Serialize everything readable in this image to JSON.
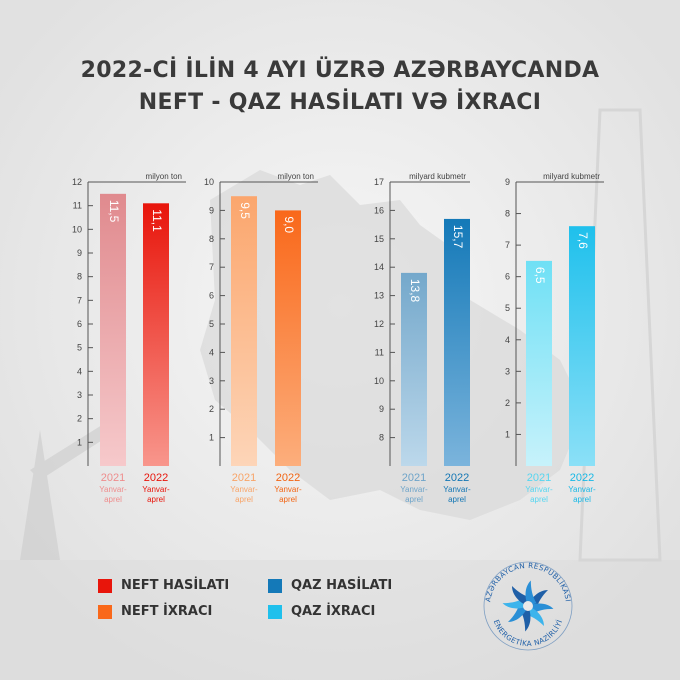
{
  "title": {
    "line1": "2022-Cİ İLİN 4 AYI ÜZRƏ AZƏRBAYCANDA",
    "line2": "NEFT - QAZ HASİLATI VƏ İXRACI"
  },
  "chart_data": [
    {
      "type": "bar",
      "unit": "milyon ton",
      "ylim": [
        0,
        12
      ],
      "yticks": [
        "1",
        "2",
        "3",
        "4",
        "5",
        "6",
        "7",
        "8",
        "9",
        "10",
        "11",
        "12"
      ],
      "categories": [
        {
          "year": "2021",
          "period": [
            "Yanvar-",
            "aprel"
          ]
        },
        {
          "year": "2022",
          "period": [
            "Yanvar-",
            "aprel"
          ]
        }
      ],
      "values": [
        11.5,
        11.1
      ],
      "value_labels": [
        "11,5",
        "11,1"
      ],
      "colors_top": [
        "#e08a8e",
        "#e8150b"
      ],
      "colors_bottom": [
        "#f6c9cb",
        "#f8968c"
      ],
      "label_colors": [
        "#ee8d8d",
        "#e8150b"
      ]
    },
    {
      "type": "bar",
      "unit": "milyon ton",
      "ylim": [
        0,
        10
      ],
      "yticks": [
        "1",
        "2",
        "3",
        "4",
        "5",
        "6",
        "7",
        "8",
        "9",
        "10"
      ],
      "categories": [
        {
          "year": "2021",
          "period": [
            "Yanvar-",
            "aprel"
          ]
        },
        {
          "year": "2022",
          "period": [
            "Yanvar-",
            "aprel"
          ]
        }
      ],
      "values": [
        9.5,
        9.0
      ],
      "value_labels": [
        "9,5",
        "9,0"
      ],
      "colors_top": [
        "#fba66d",
        "#f9681a"
      ],
      "colors_bottom": [
        "#fdd5b8",
        "#fcae7c"
      ],
      "label_colors": [
        "#f8a468",
        "#f26514"
      ]
    },
    {
      "type": "bar",
      "unit": "milyard kubmetr",
      "ylim": [
        7,
        17
      ],
      "yticks": [
        "8",
        "9",
        "10",
        "11",
        "12",
        "13",
        "14",
        "15",
        "16",
        "17"
      ],
      "categories": [
        {
          "year": "2021",
          "period": [
            "Yanvar-",
            "aprel"
          ]
        },
        {
          "year": "2022",
          "period": [
            "Yanvar-",
            "aprel"
          ]
        }
      ],
      "values": [
        13.8,
        15.7
      ],
      "value_labels": [
        "13,8",
        "15,7"
      ],
      "colors_top": [
        "#74a8cb",
        "#1479b8"
      ],
      "colors_bottom": [
        "#bcd8eb",
        "#7bb4dc"
      ],
      "label_colors": [
        "#6ea4c9",
        "#1376b4"
      ]
    },
    {
      "type": "bar",
      "unit": "milyard kubmetr",
      "ylim": [
        0,
        9
      ],
      "yticks": [
        "1",
        "2",
        "3",
        "4",
        "5",
        "6",
        "7",
        "8",
        "9"
      ],
      "categories": [
        {
          "year": "2021",
          "period": [
            "Yanvar-",
            "aprel"
          ]
        },
        {
          "year": "2022",
          "period": [
            "Yanvar-",
            "aprel"
          ]
        }
      ],
      "values": [
        6.5,
        7.6
      ],
      "value_labels": [
        "6,5",
        "7,6"
      ],
      "colors_top": [
        "#6fe0f5",
        "#1fc0ec"
      ],
      "colors_bottom": [
        "#c7f2fb",
        "#8be0f7"
      ],
      "label_colors": [
        "#55d6f1",
        "#18b8e6"
      ]
    }
  ],
  "legend": [
    {
      "label": "NEFT HASİLATI",
      "color": "#e8150b"
    },
    {
      "label": "NEFT İXRACI",
      "color": "#f9681a"
    },
    {
      "label": "QAZ HASİLATI",
      "color": "#1479b8"
    },
    {
      "label": "QAZ İXRACI",
      "color": "#1fc0ec"
    }
  ],
  "logo": {
    "ring_top": "AZƏRBAYCAN RESPUBLİKASI",
    "ring_bottom": "ENERGETİKA NAZİRLİYİ",
    "color": "#1f5fa7"
  }
}
